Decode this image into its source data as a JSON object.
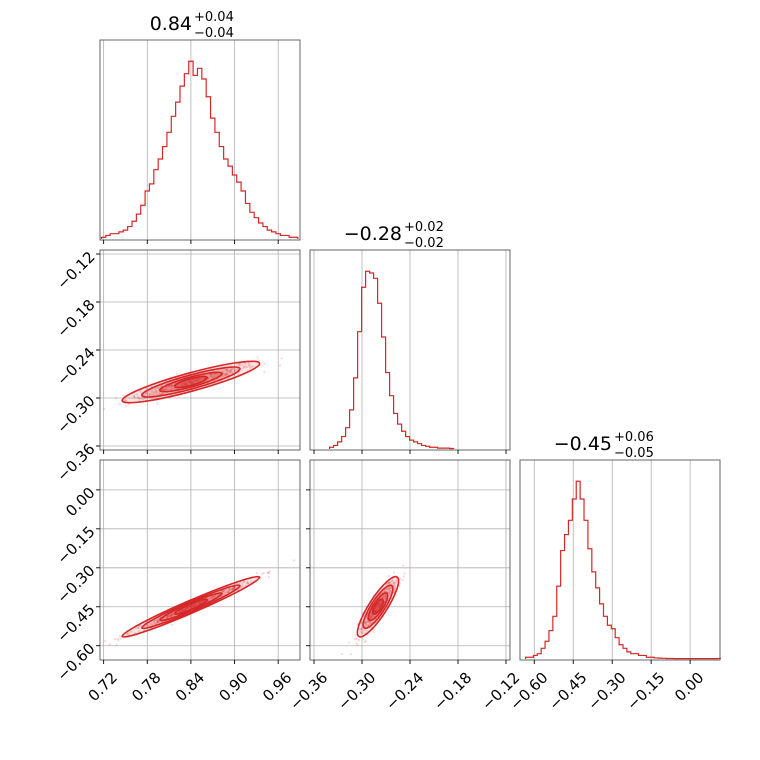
{
  "chart_data": {
    "type": "corner",
    "color": "#d62728",
    "grid": true,
    "parameters": [
      {
        "title": {
          "median": "0.84",
          "plus": "+0.04",
          "minus": "−0.04"
        },
        "range": [
          0.715,
          0.99
        ],
        "ticks": [
          0.72,
          0.78,
          0.84,
          0.9,
          0.96
        ],
        "tick_labels": [
          "0.72",
          "0.78",
          "0.84",
          "0.90",
          "0.96"
        ],
        "hist_x": [
          0.72,
          0.726,
          0.732,
          0.738,
          0.744,
          0.75,
          0.756,
          0.762,
          0.768,
          0.774,
          0.78,
          0.786,
          0.792,
          0.798,
          0.804,
          0.81,
          0.816,
          0.822,
          0.828,
          0.834,
          0.84,
          0.846,
          0.852,
          0.858,
          0.864,
          0.87,
          0.876,
          0.882,
          0.888,
          0.894,
          0.9,
          0.906,
          0.912,
          0.918,
          0.924,
          0.93,
          0.936,
          0.942,
          0.948,
          0.954,
          0.96,
          0.966,
          0.972,
          0.978,
          0.984
        ],
        "hist_y": [
          1,
          2,
          3,
          3,
          4,
          5,
          7,
          10,
          14,
          19,
          27,
          31,
          39,
          45,
          52,
          60,
          69,
          77,
          86,
          93,
          100,
          92,
          96,
          90,
          80,
          68,
          60,
          52,
          45,
          41,
          36,
          32,
          27,
          20,
          15,
          12,
          9,
          7,
          5,
          4,
          3,
          2,
          2,
          1,
          1
        ]
      },
      {
        "title": {
          "median": "−0.28",
          "plus": "+0.02",
          "minus": "−0.02"
        },
        "range": [
          -0.365,
          -0.115
        ],
        "ticks": [
          -0.36,
          -0.3,
          -0.24,
          -0.18,
          -0.12
        ],
        "tick_labels": [
          "−0.36",
          "−0.30",
          "−0.24",
          "−0.18",
          "−0.12"
        ],
        "hist_x": [
          -0.338,
          -0.333,
          -0.328,
          -0.323,
          -0.318,
          -0.313,
          -0.308,
          -0.303,
          -0.298,
          -0.293,
          -0.288,
          -0.283,
          -0.278,
          -0.273,
          -0.268,
          -0.263,
          -0.258,
          -0.253,
          -0.248,
          -0.243,
          -0.238,
          -0.233,
          -0.228,
          -0.223,
          -0.218,
          -0.213,
          -0.208,
          -0.203,
          -0.198,
          -0.193,
          -0.188
        ],
        "hist_y": [
          1,
          2,
          4,
          7,
          12,
          22,
          40,
          66,
          91,
          100,
          99,
          96,
          82,
          63,
          43,
          30,
          20,
          14,
          10,
          7,
          5,
          4,
          3,
          2,
          1.5,
          1,
          1,
          0.5,
          0.5,
          0.5,
          0.3
        ]
      },
      {
        "title": {
          "median": "−0.45",
          "plus": "+0.06",
          "minus": "−0.05"
        },
        "range": [
          -0.655,
          0.115
        ],
        "ticks": [
          -0.6,
          -0.45,
          -0.3,
          -0.15,
          0.0
        ],
        "tick_labels": [
          "−0.60",
          "−0.45",
          "−0.30",
          "−0.15",
          "0.00"
        ],
        "hist_x": [
          -0.626,
          -0.611,
          -0.596,
          -0.581,
          -0.566,
          -0.551,
          -0.536,
          -0.521,
          -0.506,
          -0.491,
          -0.476,
          -0.461,
          -0.446,
          -0.431,
          -0.416,
          -0.401,
          -0.386,
          -0.371,
          -0.356,
          -0.341,
          -0.326,
          -0.311,
          -0.296,
          -0.281,
          -0.266,
          -0.251,
          -0.236,
          -0.221,
          -0.206,
          -0.191,
          -0.176,
          -0.161,
          -0.146,
          -0.131,
          -0.116,
          -0.101,
          -0.086,
          -0.071,
          -0.056,
          -0.041,
          -0.026,
          -0.011,
          0.004,
          0.019,
          0.034,
          0.049,
          0.064,
          0.079,
          0.094,
          0.109
        ],
        "hist_y": [
          1,
          1,
          2,
          3,
          6,
          10,
          16,
          24,
          41,
          61,
          70,
          78,
          90,
          100,
          90,
          78,
          62,
          49,
          40,
          31,
          24,
          19,
          17,
          12,
          8,
          6,
          4,
          3,
          3,
          2,
          2,
          1,
          1,
          0.6,
          0.5,
          0.4,
          0.3,
          0.3,
          0.2,
          0.2,
          0.2,
          0.2,
          0.2,
          0.2,
          0.2,
          0.2,
          0.2,
          0.2,
          0.2,
          0.3
        ]
      }
    ],
    "correlations": [
      {
        "x_param": 0,
        "y_param": 1,
        "center": [
          0.84,
          -0.28
        ],
        "sd": [
          0.045,
          0.012
        ],
        "rho": 0.92
      },
      {
        "x_param": 0,
        "y_param": 2,
        "center": [
          0.84,
          -0.45
        ],
        "sd": [
          0.045,
          0.055
        ],
        "rho": 0.985
      },
      {
        "x_param": 1,
        "y_param": 2,
        "center": [
          -0.28,
          -0.45
        ],
        "sd": [
          0.012,
          0.055
        ],
        "rho": 0.9
      }
    ]
  }
}
